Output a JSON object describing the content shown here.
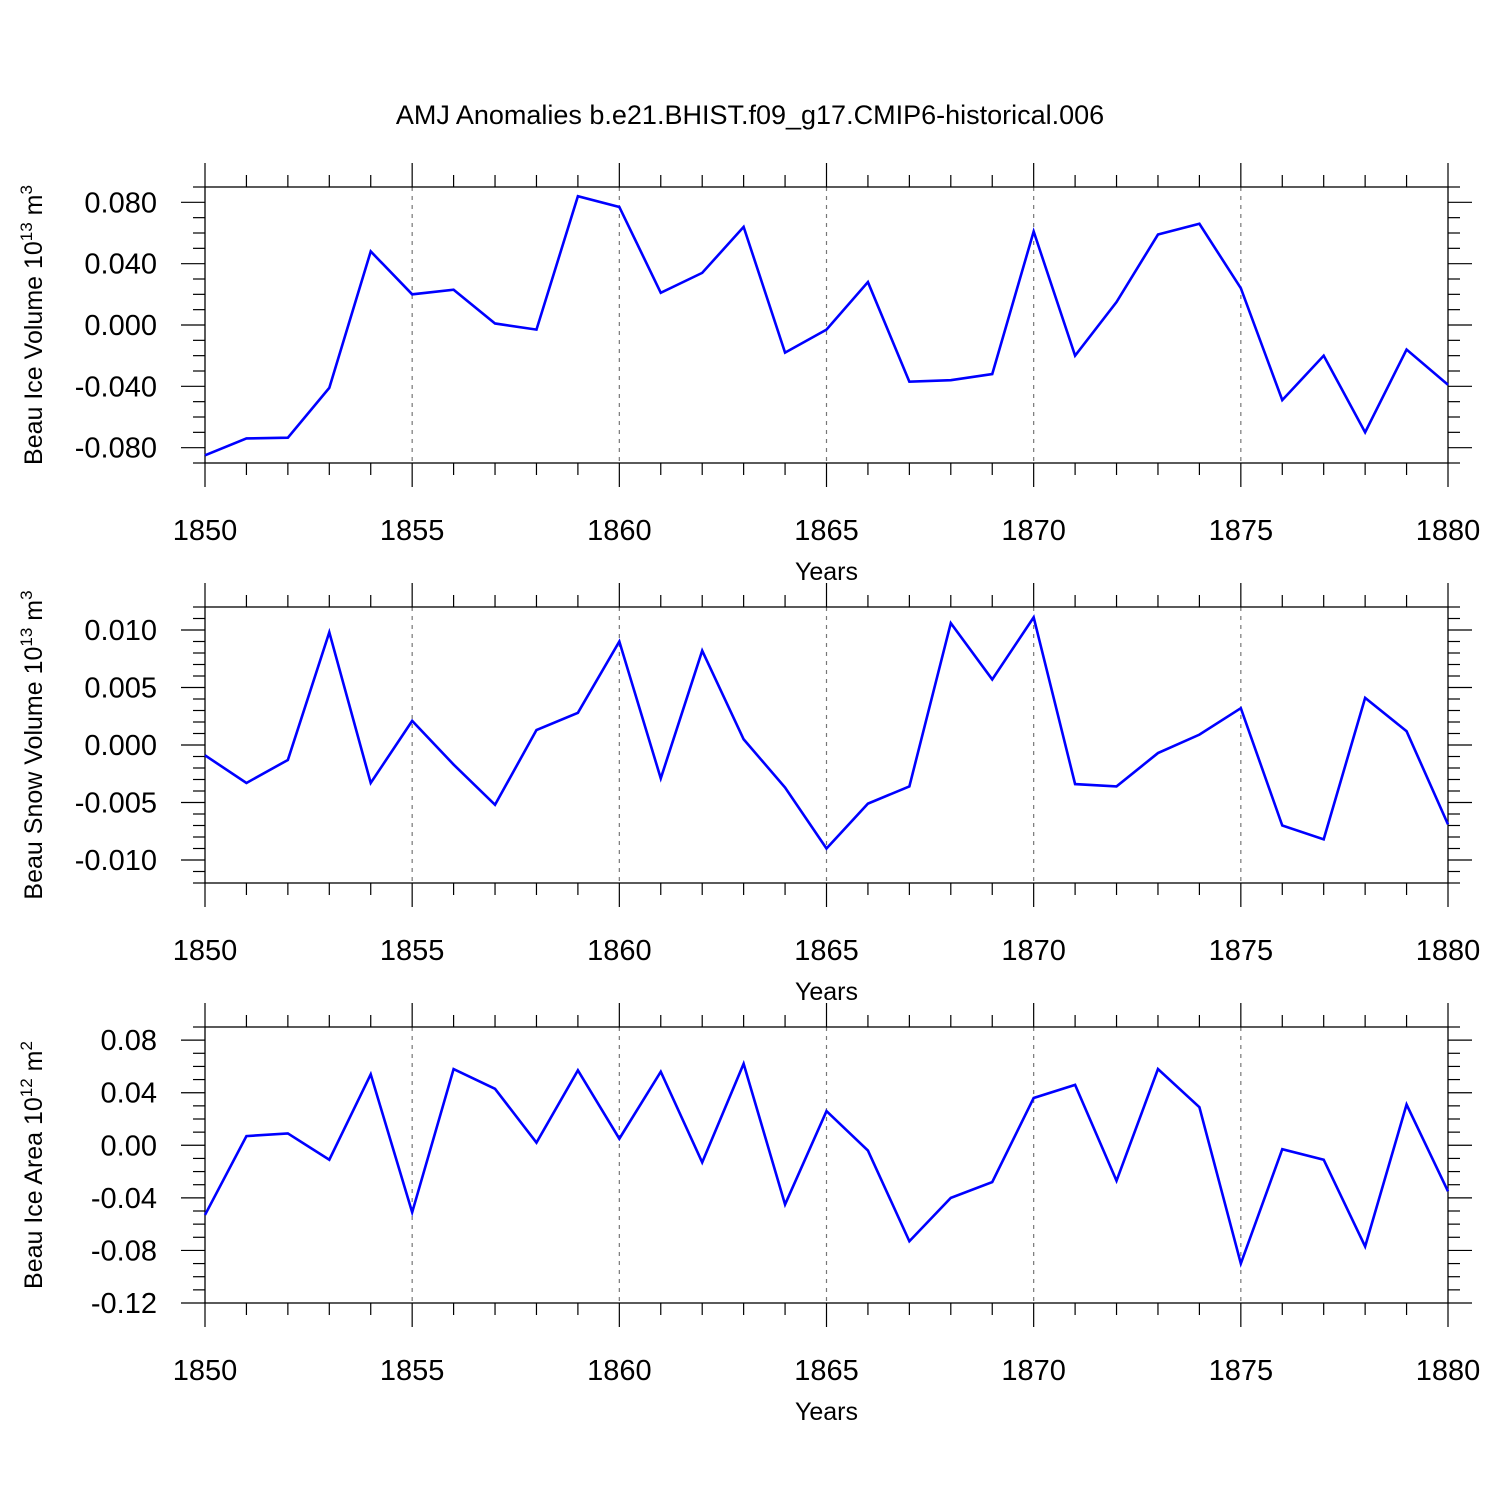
{
  "title": "AMJ Anomalies b.e21.BHIST.f09_g17.CMIP6-historical.006",
  "line_color": "#0000ff",
  "chart_data": [
    {
      "type": "line",
      "ylabel_main": "Beau Ice Volume 10",
      "ylabel_exp": "13",
      "ylabel_unit": " m",
      "ylabel_unit_exp": "3",
      "xlabel": "Years",
      "xlim": [
        1850,
        1880
      ],
      "ylim": [
        -0.09,
        0.09
      ],
      "xticks": [
        1850,
        1855,
        1860,
        1865,
        1870,
        1875,
        1880
      ],
      "xtick_labels": [
        "1850",
        "1855",
        "1860",
        "1865",
        "1870",
        "1875",
        "1880"
      ],
      "yticks": [
        -0.08,
        -0.04,
        0.0,
        0.04,
        0.08
      ],
      "ytick_labels": [
        "-0.080",
        "-0.040",
        "0.000",
        "0.040",
        "0.080"
      ],
      "yminor_step": 0.01,
      "grid_x": true,
      "x": [
        1850,
        1851,
        1852,
        1853,
        1854,
        1855,
        1856,
        1857,
        1858,
        1859,
        1860,
        1861,
        1862,
        1863,
        1864,
        1865,
        1866,
        1867,
        1868,
        1869,
        1870,
        1871,
        1872,
        1873,
        1874,
        1875,
        1876,
        1877,
        1878,
        1879,
        1880
      ],
      "values": [
        -0.085,
        -0.074,
        -0.0735,
        -0.041,
        0.048,
        0.02,
        0.023,
        0.001,
        -0.003,
        0.084,
        0.077,
        0.021,
        0.034,
        0.064,
        -0.018,
        -0.003,
        0.028,
        -0.037,
        -0.036,
        -0.032,
        0.061,
        -0.02,
        0.015,
        0.059,
        0.066,
        0.024,
        -0.049,
        -0.02,
        -0.07,
        -0.016,
        -0.039
      ]
    },
    {
      "type": "line",
      "ylabel_main": "Beau Snow Volume 10",
      "ylabel_exp": "13",
      "ylabel_unit": " m",
      "ylabel_unit_exp": "3",
      "xlabel": "Years",
      "xlim": [
        1850,
        1880
      ],
      "ylim": [
        -0.012,
        0.012
      ],
      "xticks": [
        1850,
        1855,
        1860,
        1865,
        1870,
        1875,
        1880
      ],
      "xtick_labels": [
        "1850",
        "1855",
        "1860",
        "1865",
        "1870",
        "1875",
        "1880"
      ],
      "yticks": [
        -0.01,
        -0.005,
        0.0,
        0.005,
        0.01
      ],
      "ytick_labels": [
        "-0.010",
        "-0.005",
        "0.000",
        "0.005",
        "0.010"
      ],
      "yminor_step": 0.001,
      "grid_x": true,
      "x": [
        1850,
        1851,
        1852,
        1853,
        1854,
        1855,
        1856,
        1857,
        1858,
        1859,
        1860,
        1861,
        1862,
        1863,
        1864,
        1865,
        1866,
        1867,
        1868,
        1869,
        1870,
        1871,
        1872,
        1873,
        1874,
        1875,
        1876,
        1877,
        1878,
        1879,
        1880
      ],
      "values": [
        -0.0009,
        -0.0033,
        -0.0013,
        0.0098,
        -0.0033,
        0.0021,
        -0.0017,
        -0.0052,
        0.0013,
        0.0028,
        0.009,
        -0.0029,
        0.0082,
        0.0005,
        -0.0037,
        -0.009,
        -0.0051,
        -0.0036,
        0.0106,
        0.0057,
        0.0111,
        -0.0034,
        -0.0036,
        -0.0007,
        0.0009,
        0.0032,
        -0.007,
        -0.0082,
        0.0041,
        0.0012,
        -0.0069
      ]
    },
    {
      "type": "line",
      "ylabel_main": "Beau Ice Area 10",
      "ylabel_exp": "12",
      "ylabel_unit": " m",
      "ylabel_unit_exp": "2",
      "xlabel": "Years",
      "xlim": [
        1850,
        1880
      ],
      "ylim": [
        -0.12,
        0.09
      ],
      "xticks": [
        1850,
        1855,
        1860,
        1865,
        1870,
        1875,
        1880
      ],
      "xtick_labels": [
        "1850",
        "1855",
        "1860",
        "1865",
        "1870",
        "1875",
        "1880"
      ],
      "yticks": [
        -0.12,
        -0.08,
        -0.04,
        0.0,
        0.04,
        0.08
      ],
      "ytick_labels": [
        "-0.12",
        "-0.08",
        "-0.04",
        "0.00",
        "0.04",
        "0.08"
      ],
      "yminor_step": 0.01,
      "grid_x": true,
      "x": [
        1850,
        1851,
        1852,
        1853,
        1854,
        1855,
        1856,
        1857,
        1858,
        1859,
        1860,
        1861,
        1862,
        1863,
        1864,
        1865,
        1866,
        1867,
        1868,
        1869,
        1870,
        1871,
        1872,
        1873,
        1874,
        1875,
        1876,
        1877,
        1878,
        1879,
        1880
      ],
      "values": [
        -0.053,
        0.007,
        0.009,
        -0.011,
        0.054,
        -0.051,
        0.058,
        0.043,
        0.002,
        0.057,
        0.005,
        0.056,
        -0.013,
        0.062,
        -0.045,
        0.026,
        -0.004,
        -0.073,
        -0.04,
        -0.028,
        0.036,
        0.046,
        -0.027,
        0.058,
        0.029,
        -0.09,
        -0.003,
        -0.011,
        -0.077,
        0.031,
        -0.035
      ]
    }
  ]
}
